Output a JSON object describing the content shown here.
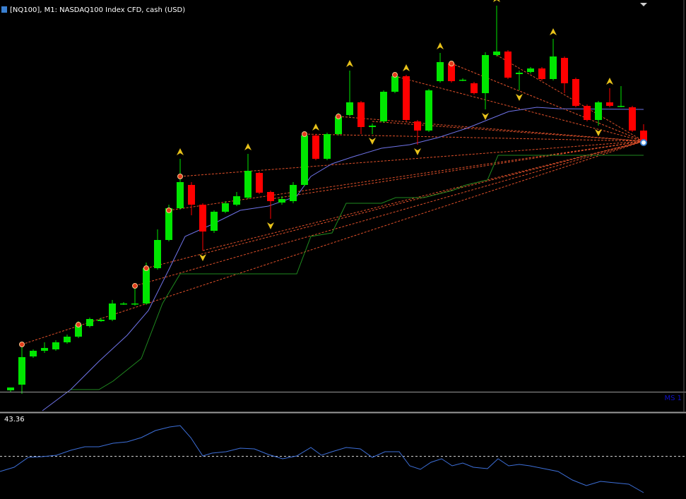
{
  "window": {
    "title": "[NQ100], M1:  NASDAQ100 Index CFD, cash (USD)",
    "label": "MS 1"
  },
  "indicator": {
    "label": "43.36"
  }
}
